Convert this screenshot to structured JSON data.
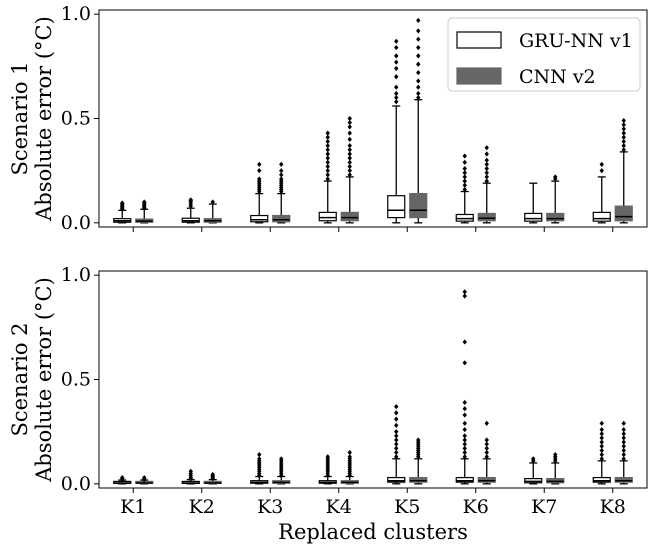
{
  "chart_data": {
    "type": "boxplot",
    "categories": [
      "K1",
      "K2",
      "K3",
      "K4",
      "K5",
      "K6",
      "K7",
      "K8"
    ],
    "xlabel": "Replaced clusters",
    "legend": {
      "position": "top-right",
      "entries": [
        {
          "name": "GRU-NN v1",
          "fill": "#ffffff",
          "stroke": "#000000"
        },
        {
          "name": "CNN v2",
          "fill": "#666666",
          "stroke": "#666666"
        }
      ]
    },
    "colors": {
      "gru_fill": "#ffffff",
      "cnn_fill": "#666666",
      "line": "#000000"
    },
    "panels": [
      {
        "ylabel_lines": [
          "Scenario 1",
          "Absolute error (°C)"
        ],
        "ylim": [
          -0.02,
          1.02
        ],
        "yticks": [
          0.0,
          0.5,
          1.0
        ],
        "ytick_labels": [
          "0.0",
          "0.5",
          "1.0"
        ],
        "series": [
          {
            "name": "GRU-NN v1",
            "boxes": [
              {
                "min": 0.0,
                "q1": 0.003,
                "median": 0.01,
                "q3": 0.02,
                "max": 0.06,
                "outliers": [
                  0.065,
                  0.07,
                  0.075,
                  0.08,
                  0.085,
                  0.09,
                  0.095
                ]
              },
              {
                "min": 0.0,
                "q1": 0.003,
                "median": 0.01,
                "q3": 0.022,
                "max": 0.07,
                "outliers": [
                  0.08,
                  0.09,
                  0.1,
                  0.105,
                  0.11
                ]
              },
              {
                "min": 0.0,
                "q1": 0.005,
                "median": 0.015,
                "q3": 0.035,
                "max": 0.14,
                "outliers": [
                  0.15,
                  0.16,
                  0.17,
                  0.18,
                  0.19,
                  0.2,
                  0.21,
                  0.25,
                  0.28
                ]
              },
              {
                "min": 0.0,
                "q1": 0.01,
                "median": 0.025,
                "q3": 0.05,
                "max": 0.2,
                "outliers": [
                  0.21,
                  0.23,
                  0.25,
                  0.27,
                  0.29,
                  0.31,
                  0.33,
                  0.35,
                  0.37,
                  0.39,
                  0.41,
                  0.43
                ]
              },
              {
                "min": 0.0,
                "q1": 0.025,
                "median": 0.06,
                "q3": 0.13,
                "max": 0.56,
                "outliers": [
                  0.58,
                  0.6,
                  0.62,
                  0.65,
                  0.7,
                  0.74,
                  0.77,
                  0.8,
                  0.84,
                  0.87
                ]
              },
              {
                "min": 0.0,
                "q1": 0.008,
                "median": 0.02,
                "q3": 0.04,
                "max": 0.15,
                "outliers": [
                  0.16,
                  0.18,
                  0.2,
                  0.22,
                  0.24,
                  0.26,
                  0.29,
                  0.32
                ]
              },
              {
                "min": 0.0,
                "q1": 0.008,
                "median": 0.02,
                "q3": 0.045,
                "max": 0.19,
                "outliers": []
              },
              {
                "min": 0.0,
                "q1": 0.008,
                "median": 0.02,
                "q3": 0.05,
                "max": 0.22,
                "outliers": [
                  0.25,
                  0.28
                ]
              }
            ]
          },
          {
            "name": "CNN v2",
            "boxes": [
              {
                "min": 0.0,
                "q1": 0.003,
                "median": 0.008,
                "q3": 0.018,
                "max": 0.065,
                "outliers": [
                  0.07,
                  0.075,
                  0.08,
                  0.085,
                  0.09,
                  0.095,
                  0.1
                ]
              },
              {
                "min": 0.0,
                "q1": 0.003,
                "median": 0.01,
                "q3": 0.02,
                "max": 0.09,
                "outliers": [
                  0.1
                ]
              },
              {
                "min": 0.0,
                "q1": 0.005,
                "median": 0.015,
                "q3": 0.035,
                "max": 0.14,
                "outliers": [
                  0.15,
                  0.16,
                  0.17,
                  0.18,
                  0.19,
                  0.2,
                  0.21,
                  0.23,
                  0.25,
                  0.28
                ]
              },
              {
                "min": 0.0,
                "q1": 0.01,
                "median": 0.025,
                "q3": 0.05,
                "max": 0.22,
                "outliers": [
                  0.23,
                  0.25,
                  0.27,
                  0.29,
                  0.31,
                  0.33,
                  0.35,
                  0.37,
                  0.4,
                  0.43,
                  0.46,
                  0.48,
                  0.5
                ]
              },
              {
                "min": 0.0,
                "q1": 0.025,
                "median": 0.06,
                "q3": 0.14,
                "max": 0.59,
                "outliers": [
                  0.6,
                  0.62,
                  0.65,
                  0.68,
                  0.72,
                  0.76,
                  0.8,
                  0.84,
                  0.88,
                  0.92,
                  0.97
                ]
              },
              {
                "min": 0.0,
                "q1": 0.01,
                "median": 0.022,
                "q3": 0.045,
                "max": 0.19,
                "outliers": [
                  0.2,
                  0.22,
                  0.24,
                  0.26,
                  0.28,
                  0.3,
                  0.33,
                  0.36
                ]
              },
              {
                "min": 0.0,
                "q1": 0.01,
                "median": 0.02,
                "q3": 0.045,
                "max": 0.2,
                "outliers": [
                  0.21,
                  0.22
                ]
              },
              {
                "min": 0.0,
                "q1": 0.01,
                "median": 0.03,
                "q3": 0.08,
                "max": 0.34,
                "outliers": [
                  0.35,
                  0.37,
                  0.39,
                  0.41,
                  0.43,
                  0.45,
                  0.47,
                  0.49
                ]
              }
            ]
          }
        ]
      },
      {
        "ylabel_lines": [
          "Scenario 2",
          "Absolute error (°C)"
        ],
        "ylim": [
          -0.02,
          1.02
        ],
        "yticks": [
          0.0,
          0.5,
          1.0
        ],
        "ytick_labels": [
          "0.0",
          "0.5",
          "1.0"
        ],
        "series": [
          {
            "name": "GRU-NN v1",
            "boxes": [
              {
                "min": 0.0,
                "q1": 0.002,
                "median": 0.004,
                "q3": 0.008,
                "max": 0.018,
                "outliers": [
                  0.02,
                  0.025,
                  0.03
                ]
              },
              {
                "min": 0.0,
                "q1": 0.002,
                "median": 0.004,
                "q3": 0.008,
                "max": 0.02,
                "outliers": [
                  0.025,
                  0.03,
                  0.04,
                  0.05,
                  0.06
                ]
              },
              {
                "min": 0.0,
                "q1": 0.003,
                "median": 0.007,
                "q3": 0.015,
                "max": 0.035,
                "outliers": [
                  0.04,
                  0.05,
                  0.06,
                  0.07,
                  0.08,
                  0.09,
                  0.1,
                  0.11,
                  0.12,
                  0.14
                ]
              },
              {
                "min": 0.0,
                "q1": 0.003,
                "median": 0.007,
                "q3": 0.015,
                "max": 0.035,
                "outliers": [
                  0.04,
                  0.05,
                  0.06,
                  0.07,
                  0.08,
                  0.09,
                  0.1,
                  0.11,
                  0.12,
                  0.13
                ]
              },
              {
                "min": 0.0,
                "q1": 0.008,
                "median": 0.015,
                "q3": 0.03,
                "max": 0.12,
                "outliers": [
                  0.13,
                  0.15,
                  0.17,
                  0.19,
                  0.21,
                  0.23,
                  0.25,
                  0.28,
                  0.31,
                  0.34,
                  0.37
                ]
              },
              {
                "min": 0.0,
                "q1": 0.008,
                "median": 0.015,
                "q3": 0.03,
                "max": 0.12,
                "outliers": [
                  0.13,
                  0.15,
                  0.17,
                  0.19,
                  0.21,
                  0.23,
                  0.26,
                  0.29,
                  0.33,
                  0.36,
                  0.39,
                  0.58,
                  0.68,
                  0.9,
                  0.92
                ]
              },
              {
                "min": 0.0,
                "q1": 0.005,
                "median": 0.012,
                "q3": 0.025,
                "max": 0.1,
                "outliers": [
                  0.11,
                  0.12
                ]
              },
              {
                "min": 0.0,
                "q1": 0.008,
                "median": 0.015,
                "q3": 0.03,
                "max": 0.11,
                "outliers": [
                  0.12,
                  0.14,
                  0.16,
                  0.18,
                  0.2,
                  0.22,
                  0.24,
                  0.26,
                  0.29
                ]
              }
            ]
          },
          {
            "name": "CNN v2",
            "boxes": [
              {
                "min": 0.0,
                "q1": 0.002,
                "median": 0.004,
                "q3": 0.008,
                "max": 0.018,
                "outliers": [
                  0.02,
                  0.025,
                  0.03
                ]
              },
              {
                "min": 0.0,
                "q1": 0.002,
                "median": 0.004,
                "q3": 0.008,
                "max": 0.02,
                "outliers": [
                  0.025,
                  0.03,
                  0.035,
                  0.04,
                  0.045
                ]
              },
              {
                "min": 0.0,
                "q1": 0.003,
                "median": 0.007,
                "q3": 0.015,
                "max": 0.035,
                "outliers": [
                  0.04,
                  0.05,
                  0.06,
                  0.07,
                  0.08,
                  0.09,
                  0.1,
                  0.11,
                  0.12
                ]
              },
              {
                "min": 0.0,
                "q1": 0.003,
                "median": 0.007,
                "q3": 0.015,
                "max": 0.035,
                "outliers": [
                  0.04,
                  0.05,
                  0.06,
                  0.07,
                  0.08,
                  0.09,
                  0.1,
                  0.11,
                  0.12,
                  0.13,
                  0.15
                ]
              },
              {
                "min": 0.0,
                "q1": 0.008,
                "median": 0.015,
                "q3": 0.03,
                "max": 0.12,
                "outliers": [
                  0.13,
                  0.14,
                  0.15,
                  0.16,
                  0.17,
                  0.18,
                  0.19,
                  0.2,
                  0.21
                ]
              },
              {
                "min": 0.0,
                "q1": 0.008,
                "median": 0.015,
                "q3": 0.03,
                "max": 0.12,
                "outliers": [
                  0.13,
                  0.15,
                  0.17,
                  0.19,
                  0.21,
                  0.29
                ]
              },
              {
                "min": 0.0,
                "q1": 0.005,
                "median": 0.012,
                "q3": 0.025,
                "max": 0.1,
                "outliers": [
                  0.11,
                  0.12,
                  0.13,
                  0.14
                ]
              },
              {
                "min": 0.0,
                "q1": 0.008,
                "median": 0.015,
                "q3": 0.03,
                "max": 0.11,
                "outliers": [
                  0.12,
                  0.14,
                  0.16,
                  0.18,
                  0.2,
                  0.22,
                  0.24,
                  0.26,
                  0.29
                ]
              }
            ]
          }
        ]
      }
    ]
  }
}
